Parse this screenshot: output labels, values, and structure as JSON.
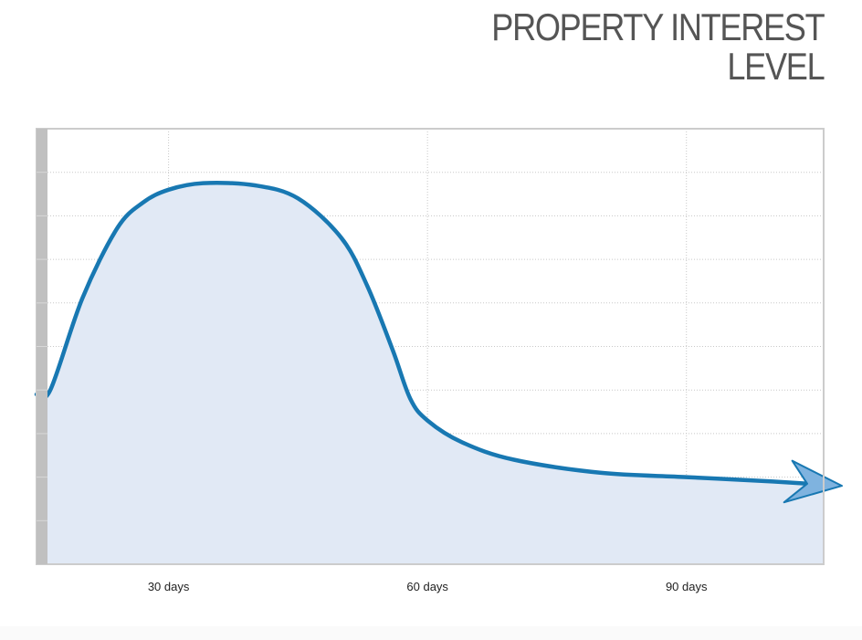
{
  "title_lines": [
    "PROPERTY INTEREST",
    "LEVEL"
  ],
  "chart_data": {
    "type": "area",
    "title": "PROPERTY INTEREST LEVEL",
    "xlabel": "",
    "ylabel": "",
    "x_ticks": [
      30,
      60,
      90
    ],
    "x_tick_labels": [
      "30 days",
      "60 days",
      "90 days"
    ],
    "xlim": [
      14.7,
      105.9
    ],
    "ylim": [
      0,
      10
    ],
    "grid": {
      "horizontal": true,
      "vertical": true
    },
    "y_tick_labels_shown": false,
    "series": [
      {
        "x": [
          14.7,
          16.3,
          20,
          24,
          27,
          30,
          34,
          40,
          45,
          50,
          53,
          56,
          58,
          60,
          64,
          70,
          80,
          90,
          100,
          104
        ],
        "y": [
          3.9,
          4.0,
          6.1,
          7.7,
          8.3,
          8.6,
          8.75,
          8.7,
          8.4,
          7.5,
          6.4,
          4.9,
          3.8,
          3.3,
          2.8,
          2.4,
          2.1,
          2.0,
          1.9,
          1.85
        ]
      }
    ],
    "arrow_at_end": true,
    "colors": {
      "line": "#1878b2",
      "fill": "#e1e9f5",
      "arrow_fill": "#7fb3df",
      "axis_bar": "#c0c0c0",
      "grid": "#c8c8c8",
      "frame": "#cccccc"
    }
  }
}
